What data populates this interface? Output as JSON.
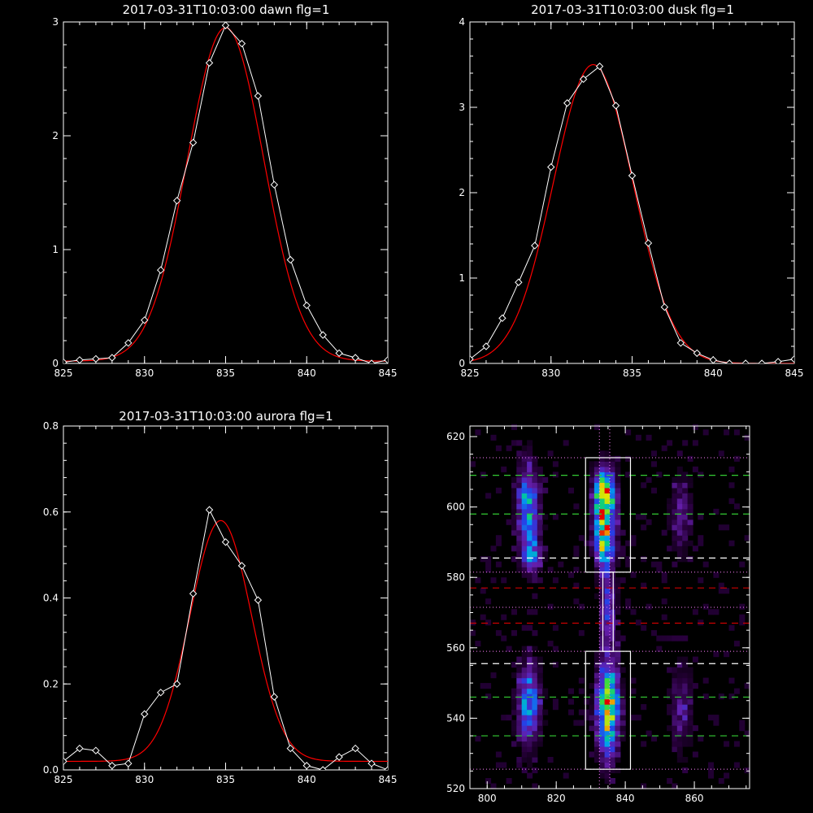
{
  "colors": {
    "background": "#000000",
    "axes": "#ffffff",
    "data_line": "#ffffff",
    "fit_line": "#ff0000",
    "dotted_guides": "#ff80ff",
    "dashed_green": "#33cc33",
    "dashed_white": "#ffffff",
    "dashed_red": "#cc0000",
    "boxes": "#ffffff"
  },
  "chart_data": [
    {
      "type": "line",
      "title": "2017-03-31T10:03:00 dawn flg=1",
      "xlim": [
        825,
        845
      ],
      "ylim": [
        0,
        3
      ],
      "xticks": [
        825,
        830,
        835,
        840,
        845
      ],
      "yticks": [
        0,
        1,
        2,
        3
      ],
      "xticklabels": [
        "825",
        "830",
        "835",
        "840",
        "845"
      ],
      "yticklabels": [
        "0",
        "1",
        "2",
        "3"
      ],
      "series": [
        {
          "role": "data",
          "x": [
            825,
            826,
            827,
            828,
            829,
            830,
            831,
            832,
            833,
            834,
            835,
            836,
            837,
            838,
            839,
            840,
            841,
            842,
            843,
            844,
            845
          ],
          "y": [
            0.01,
            0.03,
            0.04,
            0.05,
            0.18,
            0.38,
            0.82,
            1.43,
            1.94,
            2.64,
            2.97,
            2.81,
            2.35,
            1.57,
            0.91,
            0.51,
            0.25,
            0.09,
            0.05,
            0.0,
            0.03
          ]
        },
        {
          "role": "fit",
          "model": "gaussian",
          "amplitude": 2.93,
          "center": 835.0,
          "sigma": 2.35,
          "offset": 0.02
        }
      ]
    },
    {
      "type": "line",
      "title": "2017-03-31T10:03:00 dusk flg=1",
      "xlim": [
        825,
        845
      ],
      "ylim": [
        0,
        4
      ],
      "xticks": [
        825,
        830,
        835,
        840,
        845
      ],
      "yticks": [
        0,
        1,
        2,
        3,
        4
      ],
      "xticklabels": [
        "825",
        "830",
        "835",
        "840",
        "845"
      ],
      "yticklabels": [
        "0",
        "1",
        "2",
        "3",
        "4"
      ],
      "series": [
        {
          "role": "data",
          "x": [
            825,
            826,
            827,
            828,
            829,
            830,
            831,
            832,
            833,
            834,
            835,
            836,
            837,
            838,
            839,
            840,
            841,
            842,
            843,
            844,
            845
          ],
          "y": [
            0.05,
            0.2,
            0.53,
            0.95,
            1.38,
            2.3,
            3.05,
            3.33,
            3.48,
            3.02,
            2.2,
            1.41,
            0.66,
            0.24,
            0.12,
            0.04,
            0.0,
            0.0,
            0.0,
            0.02,
            0.05
          ]
        },
        {
          "role": "fit",
          "model": "gaussian",
          "amplitude": 3.5,
          "center": 832.6,
          "sigma": 2.45,
          "offset": 0.0
        }
      ]
    },
    {
      "type": "line",
      "title": "2017-03-31T10:03:00 aurora flg=1",
      "xlim": [
        825,
        845
      ],
      "ylim": [
        0,
        0.8
      ],
      "xticks": [
        825,
        830,
        835,
        840,
        845
      ],
      "yticks": [
        0,
        0.2,
        0.4,
        0.6,
        0.8
      ],
      "xticklabels": [
        "825",
        "830",
        "835",
        "840",
        "845"
      ],
      "yticklabels": [
        "0.0",
        "0.2",
        "0.4",
        "0.6",
        "0.8"
      ],
      "series": [
        {
          "role": "data",
          "x": [
            825,
            826,
            827,
            828,
            829,
            830,
            831,
            832,
            833,
            834,
            835,
            836,
            837,
            838,
            839,
            840,
            841,
            842,
            843,
            844,
            845
          ],
          "y": [
            0.02,
            0.05,
            0.045,
            0.01,
            0.015,
            0.13,
            0.18,
            0.2,
            0.41,
            0.605,
            0.53,
            0.475,
            0.395,
            0.17,
            0.05,
            0.01,
            0.0,
            0.03,
            0.05,
            0.015,
            0.0
          ]
        },
        {
          "role": "fit",
          "model": "gaussian",
          "amplitude": 0.56,
          "center": 834.7,
          "sigma": 1.9,
          "offset": 0.02
        }
      ]
    },
    {
      "type": "heatmap",
      "xlim": [
        795,
        876
      ],
      "ylim": [
        520,
        623
      ],
      "xticks": [
        800,
        820,
        840,
        860
      ],
      "yticks": [
        520,
        540,
        560,
        580,
        600,
        620
      ],
      "xticklabels": [
        "800",
        "820",
        "840",
        "860"
      ],
      "yticklabels": [
        "520",
        "540",
        "560",
        "580",
        "600",
        "620"
      ],
      "blobs": [
        {
          "x": 812,
          "y": 599,
          "sx": 2.2,
          "sy": 9,
          "amp": 0.55
        },
        {
          "x": 813,
          "y": 586,
          "sx": 1.8,
          "sy": 3,
          "amp": 0.35
        },
        {
          "x": 812,
          "y": 544,
          "sx": 2.3,
          "sy": 8,
          "amp": 0.5
        },
        {
          "x": 834,
          "y": 602,
          "sx": 2.1,
          "sy": 6,
          "amp": 1.0
        },
        {
          "x": 834,
          "y": 590,
          "sx": 2.0,
          "sy": 5,
          "amp": 0.6
        },
        {
          "x": 835,
          "y": 572,
          "sx": 1.6,
          "sy": 9,
          "amp": 0.35
        },
        {
          "x": 835,
          "y": 543,
          "sx": 2.2,
          "sy": 9,
          "amp": 0.85
        },
        {
          "x": 856,
          "y": 598,
          "sx": 2.2,
          "sy": 8,
          "amp": 0.22
        },
        {
          "x": 856,
          "y": 543,
          "sx": 2.2,
          "sy": 9,
          "amp": 0.22
        }
      ],
      "boxes": [
        {
          "x0": 828.5,
          "x1": 841.5,
          "y0": 581.5,
          "y1": 614
        },
        {
          "x0": 833.5,
          "x1": 836.5,
          "y0": 559,
          "y1": 581.5
        },
        {
          "x0": 828.5,
          "x1": 841.5,
          "y0": 525.5,
          "y1": 559
        }
      ],
      "dotted_h": [
        525.5,
        559,
        571.5,
        581.5,
        614
      ],
      "dotted_v": [
        832.5,
        835.5
      ],
      "dashed_h": [
        {
          "y": 535,
          "color": "#33cc33"
        },
        {
          "y": 546,
          "color": "#33cc33"
        },
        {
          "y": 555.5,
          "color": "#ffffff"
        },
        {
          "y": 567,
          "color": "#cc0000"
        },
        {
          "y": 577,
          "color": "#cc0000"
        },
        {
          "y": 585.5,
          "color": "#ffffff"
        },
        {
          "y": 598,
          "color": "#33cc33"
        },
        {
          "y": 609,
          "color": "#33cc33"
        }
      ]
    }
  ]
}
